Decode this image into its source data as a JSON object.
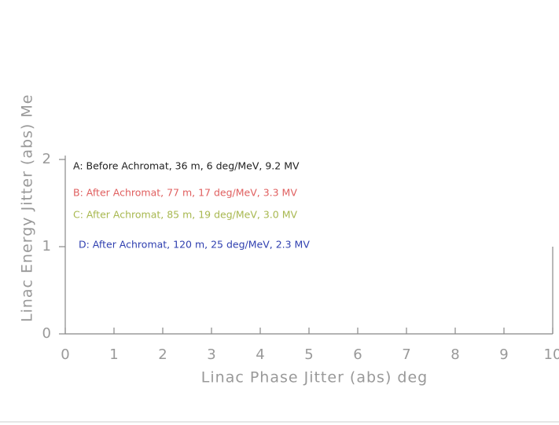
{
  "chart_data": {
    "type": "line",
    "xlabel": "Linac Phase Jitter (abs) deg",
    "ylabel": "Linac Energy Jitter (abs) Me",
    "xlim": [
      0,
      10
    ],
    "xticks": [
      0,
      1,
      2,
      3,
      4,
      5,
      6,
      7,
      8,
      9,
      10
    ],
    "ylim": [
      0,
      2
    ],
    "yticks": [
      0,
      1,
      2
    ],
    "series": [
      {
        "name": "A: Before Achromat, 36 m, 6 deg/MeV, 9.2 MV",
        "color": "#222222"
      },
      {
        "name": "B: After Achromat, 77 m, 17 deg/MeV, 3.3 MV",
        "color": "#e06060"
      },
      {
        "name": "C: After Achromat, 85 m, 19 deg/MeV, 3.0 MV",
        "color": "#a8b850"
      },
      {
        "name": "D: After Achromat, 120 m, 25 deg/MeV, 2.3 MV",
        "color": "#3040b0"
      }
    ]
  }
}
